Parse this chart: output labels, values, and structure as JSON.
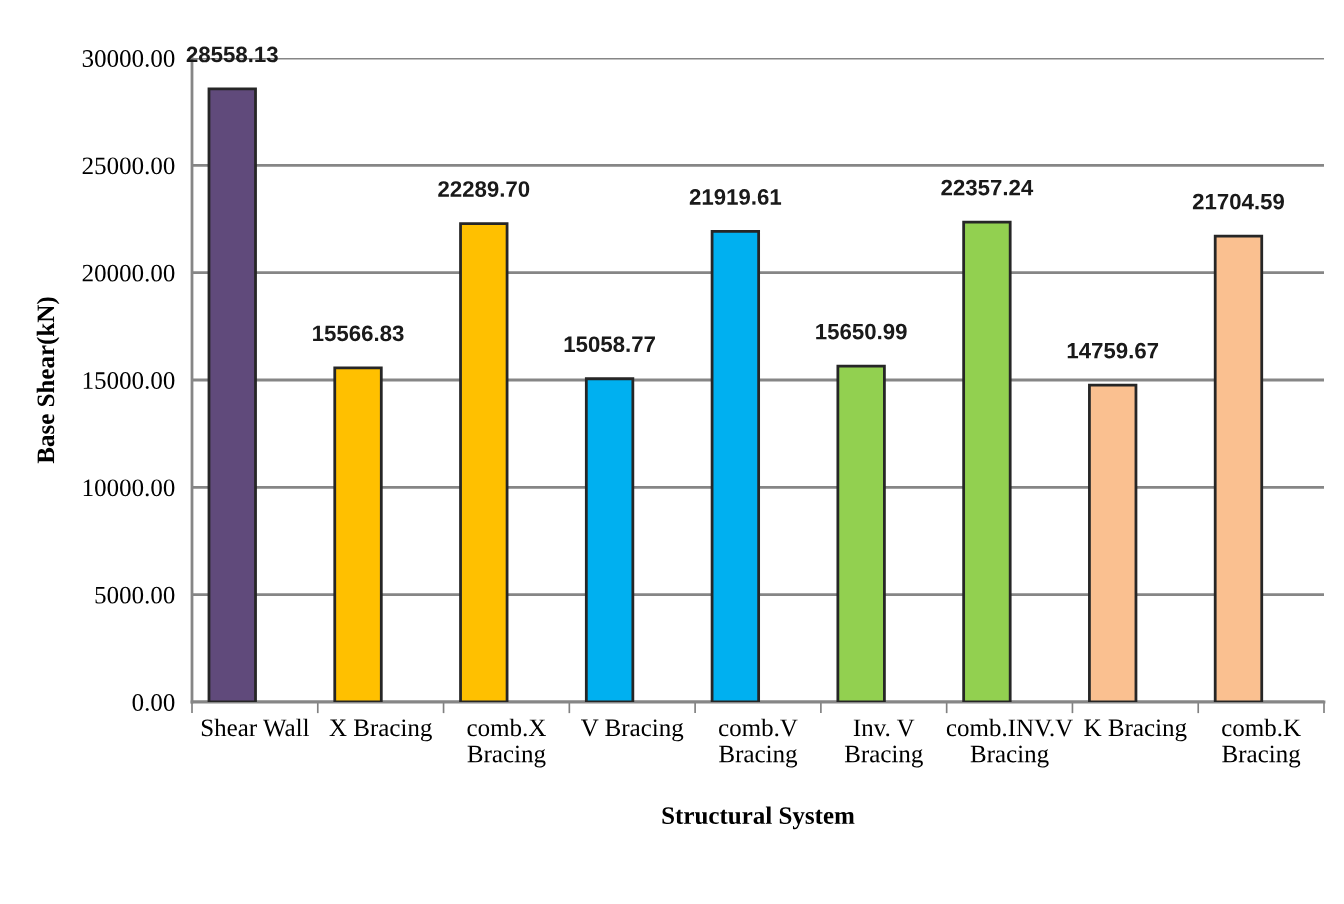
{
  "chart_data": {
    "type": "bar",
    "xlabel": "Structural System",
    "ylabel": "Base Shear(kN)",
    "categories": [
      "Shear Wall",
      "X Bracing",
      "comb.X\nBracing",
      "V Bracing",
      "comb.V\nBracing",
      "Inv. V\nBracing",
      "comb.INV.V\nBracing",
      "K Bracing",
      "comb.K\nBracing"
    ],
    "values": [
      28558.13,
      15566.83,
      22289.7,
      15058.77,
      21919.61,
      15650.99,
      22357.24,
      14759.67,
      21704.59
    ],
    "value_labels": [
      "28558.13",
      "15566.83",
      "22289.70",
      "15058.77",
      "21919.61",
      "15650.99",
      "22357.24",
      "14759.67",
      "21704.59"
    ],
    "colors": [
      "#604a7b",
      "#ffc000",
      "#ffc000",
      "#00b0f0",
      "#00b0f0",
      "#92d050",
      "#92d050",
      "#fac090",
      "#fac090"
    ],
    "ylim": [
      0,
      30000
    ],
    "yticks": [
      {
        "value": 0,
        "label": "0.00"
      },
      {
        "value": 5000,
        "label": "5000.00"
      },
      {
        "value": 10000,
        "label": "10000.00"
      },
      {
        "value": 15000,
        "label": "15000.00"
      },
      {
        "value": 20000,
        "label": "20000.00"
      },
      {
        "value": 25000,
        "label": "25000.00"
      },
      {
        "value": 30000,
        "label": "30000.00"
      }
    ],
    "grid": "y"
  }
}
